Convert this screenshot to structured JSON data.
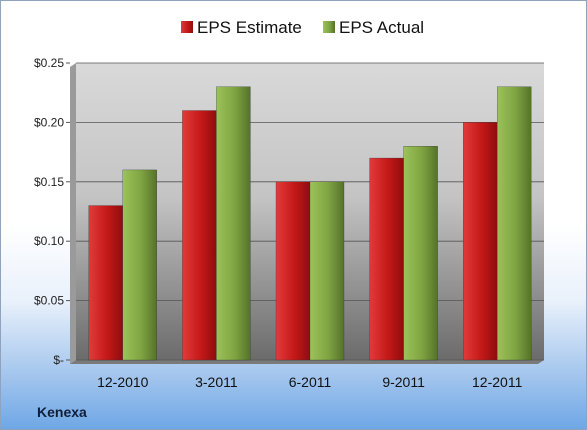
{
  "company": "Kenexa",
  "colors": {
    "estimate": "#cc1f1f",
    "actual": "#7ea341"
  },
  "chart_data": {
    "type": "bar",
    "title": "",
    "xlabel": "",
    "ylabel": "",
    "categories": [
      "12-2010",
      "3-2011",
      "6-2011",
      "9-2011",
      "12-2011"
    ],
    "series": [
      {
        "name": "EPS Estimate",
        "values": [
          0.13,
          0.21,
          0.15,
          0.17,
          0.2
        ]
      },
      {
        "name": "EPS Actual",
        "values": [
          0.16,
          0.23,
          0.15,
          0.18,
          0.23
        ]
      }
    ],
    "ylim": [
      0,
      0.25
    ],
    "yticks": [
      0,
      0.05,
      0.1,
      0.15,
      0.2,
      0.25
    ],
    "ytick_labels": [
      "$-",
      "$0.05",
      "$0.10",
      "$0.15",
      "$0.20",
      "$0.25"
    ],
    "grid": true,
    "legend": "top"
  }
}
